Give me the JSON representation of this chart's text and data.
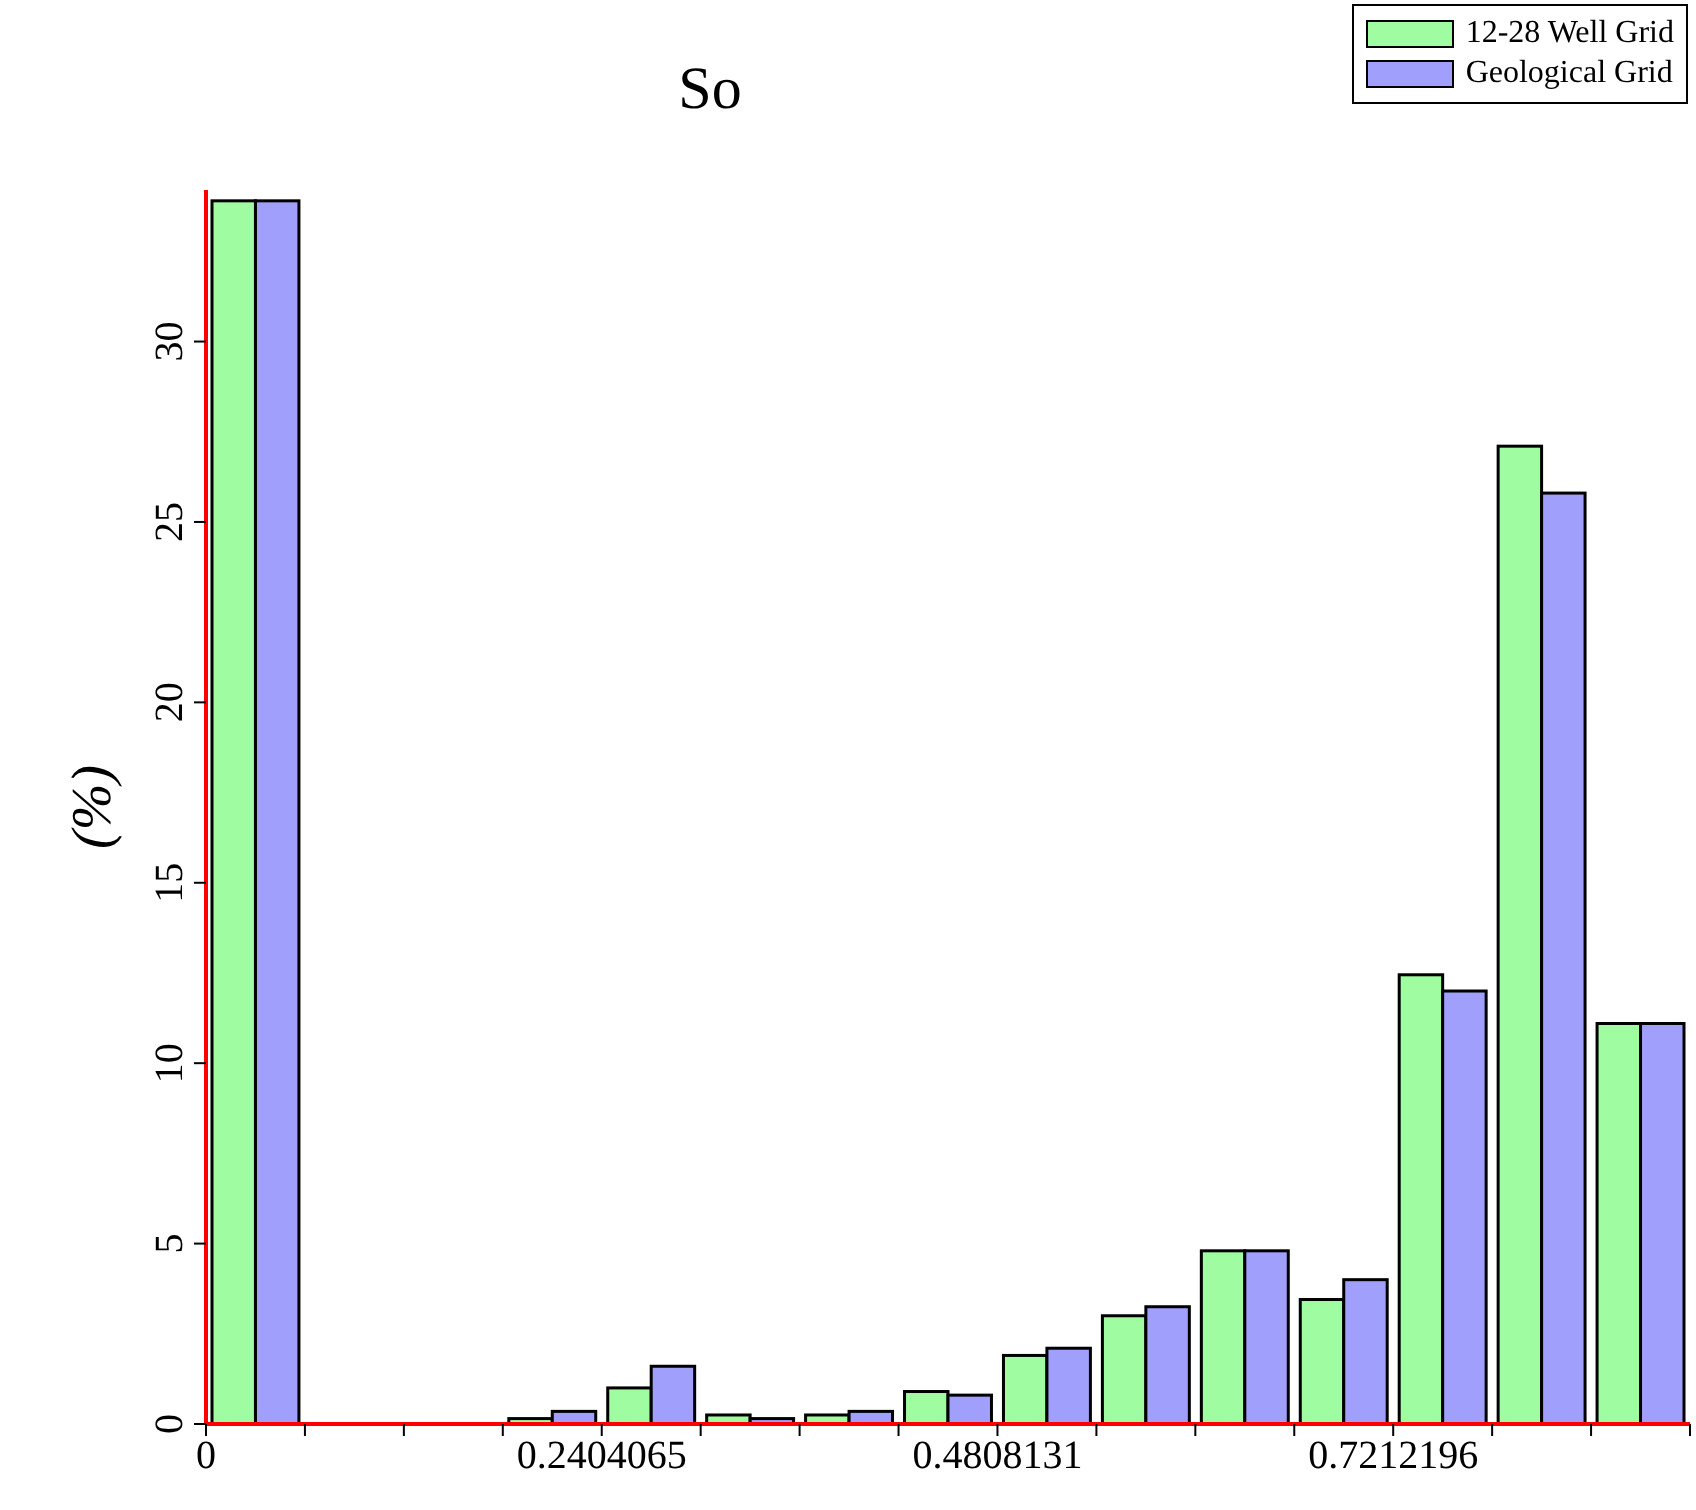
{
  "chart_data": {
    "type": "histogram",
    "title": "So",
    "ylabel": "(%)",
    "bins": [
      0,
      0.0601016,
      0.1202033,
      0.1803049,
      0.2404065,
      0.3005082,
      0.3606098,
      0.4207114,
      0.4808131,
      0.5409147,
      0.6010163,
      0.661118,
      0.7212196,
      0.7813212,
      0.8414229,
      0.9015245
    ],
    "series": [
      {
        "name": "12-28 Well Grid",
        "color": "#a0fca0",
        "values": [
          33.9,
          0,
          0,
          0.15,
          1.0,
          0.25,
          0.25,
          0.9,
          1.9,
          3.0,
          4.8,
          3.45,
          12.45,
          27.1,
          11.1
        ]
      },
      {
        "name": "Geological Grid",
        "color": "#a0a0fc",
        "values": [
          33.9,
          0,
          0,
          0.35,
          1.6,
          0.15,
          0.35,
          0.8,
          2.1,
          3.25,
          4.8,
          4.0,
          12.0,
          25.8,
          11.1
        ]
      }
    ],
    "xlim": [
      0,
      0.9015245
    ],
    "xticks": [
      0,
      {
        "value": 0.0601016,
        "label": null
      },
      {
        "value": 0.1202033,
        "label": null
      },
      {
        "value": 0.1803049,
        "label": null
      },
      {
        "value": 0.2404065,
        "label": "0.2404065"
      },
      {
        "value": 0.3005082,
        "label": null
      },
      {
        "value": 0.3606098,
        "label": null
      },
      {
        "value": 0.4207114,
        "label": null
      },
      {
        "value": 0.4808131,
        "label": "0.4808131"
      },
      {
        "value": 0.5409147,
        "label": null
      },
      {
        "value": 0.6010163,
        "label": null
      },
      {
        "value": 0.661118,
        "label": null
      },
      {
        "value": 0.7212196,
        "label": "0.7212196"
      },
      {
        "value": 0.7813212,
        "label": null
      },
      {
        "value": 0.8414229,
        "label": null
      },
      {
        "value": 0.9015245,
        "label": null
      }
    ],
    "ylim": [
      0,
      34.2
    ],
    "yticks": [
      0,
      5,
      10,
      15,
      20,
      25,
      30
    ],
    "legend": "top right",
    "grid": false
  }
}
